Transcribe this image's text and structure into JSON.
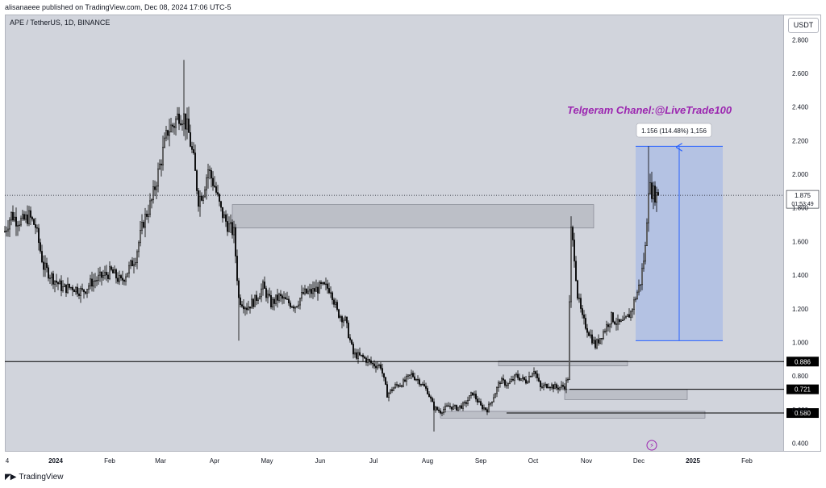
{
  "publisher": "alisanaeee published on TradingView.com, Dec 08, 2024 17:06 UTC-5",
  "symbol_info": "APE / TetherUS, 1D, BINANCE",
  "currency_button": "USDT",
  "footer": {
    "logo_icon": "tradingview-logo-icon",
    "brand": "TradingView"
  },
  "telegram_annotation": "Telgeram Chanel:@LiveTrade100",
  "measure_label": "1.156 (114.48%) 1,156",
  "last_price": {
    "value": "1.875",
    "countdown": "01:53:49"
  },
  "colors": {
    "background": "#d1d4dc",
    "candle": "#000000",
    "measure_fill": "#a9bce6",
    "measure_line": "#2962ff",
    "annotation": "#9c27b0",
    "zone_fill": "#9598a1"
  },
  "chart_data": {
    "type": "candlestick",
    "title": "APE / TetherUS, 1D, BINANCE",
    "y_unit": "USDT",
    "ylim": [
      0.35,
      2.95
    ],
    "y_ticks": [
      "2.800",
      "2.600",
      "2.400",
      "2.200",
      "2.000",
      "1.800",
      "1.600",
      "1.400",
      "1.200",
      "1.000",
      "0.800",
      "0.600",
      "0.400"
    ],
    "x_ticks": [
      "4",
      "2024",
      "Feb",
      "Mar",
      "Apr",
      "May",
      "Jun",
      "Jul",
      "Aug",
      "Sep",
      "Oct",
      "Nov",
      "Dec",
      "2025",
      "Feb"
    ],
    "price_path": [
      [
        0,
        1.66
      ],
      [
        8,
        1.76
      ],
      [
        14,
        1.73
      ],
      [
        22,
        1.72
      ],
      [
        30,
        1.75
      ],
      [
        38,
        1.69
      ],
      [
        48,
        1.45
      ],
      [
        60,
        1.38
      ],
      [
        72,
        1.32
      ],
      [
        84,
        1.33
      ],
      [
        96,
        1.3
      ],
      [
        108,
        1.36
      ],
      [
        120,
        1.39
      ],
      [
        132,
        1.42
      ],
      [
        144,
        1.36
      ],
      [
        154,
        1.44
      ],
      [
        162,
        1.51
      ],
      [
        172,
        1.72
      ],
      [
        182,
        1.84
      ],
      [
        192,
        2.05
      ],
      [
        202,
        2.26
      ],
      [
        210,
        2.3
      ],
      [
        216,
        2.36
      ],
      [
        222,
        2.34
      ],
      [
        228,
        2.24
      ],
      [
        234,
        2.08
      ],
      [
        240,
        1.85
      ],
      [
        246,
        1.9
      ],
      [
        252,
        2.03
      ],
      [
        260,
        1.93
      ],
      [
        268,
        1.78
      ],
      [
        276,
        1.7
      ],
      [
        284,
        1.65
      ],
      [
        290,
        1.26
      ],
      [
        300,
        1.21
      ],
      [
        310,
        1.25
      ],
      [
        320,
        1.33
      ],
      [
        330,
        1.23
      ],
      [
        340,
        1.27
      ],
      [
        350,
        1.24
      ],
      [
        360,
        1.22
      ],
      [
        370,
        1.29
      ],
      [
        380,
        1.3
      ],
      [
        392,
        1.33
      ],
      [
        404,
        1.32
      ],
      [
        412,
        1.18
      ],
      [
        422,
        1.13
      ],
      [
        432,
        0.93
      ],
      [
        444,
        0.91
      ],
      [
        456,
        0.87
      ],
      [
        466,
        0.86
      ],
      [
        474,
        0.69
      ],
      [
        484,
        0.74
      ],
      [
        494,
        0.76
      ],
      [
        504,
        0.81
      ],
      [
        514,
        0.77
      ],
      [
        524,
        0.71
      ],
      [
        532,
        0.61
      ],
      [
        540,
        0.59
      ],
      [
        550,
        0.62
      ],
      [
        560,
        0.61
      ],
      [
        570,
        0.63
      ],
      [
        580,
        0.7
      ],
      [
        590,
        0.62
      ],
      [
        598,
        0.6
      ],
      [
        606,
        0.68
      ],
      [
        614,
        0.77
      ],
      [
        624,
        0.75
      ],
      [
        634,
        0.8
      ],
      [
        646,
        0.77
      ],
      [
        656,
        0.84
      ],
      [
        664,
        0.73
      ],
      [
        674,
        0.75
      ],
      [
        684,
        0.73
      ],
      [
        694,
        0.74
      ],
      [
        698,
        0.79
      ],
      [
        702,
        1.66
      ],
      [
        706,
        1.52
      ],
      [
        710,
        1.28
      ],
      [
        716,
        1.14
      ],
      [
        724,
        1.06
      ],
      [
        732,
        0.98
      ],
      [
        738,
        1.03
      ],
      [
        744,
        1.08
      ],
      [
        752,
        1.15
      ],
      [
        760,
        1.11
      ],
      [
        768,
        1.12
      ],
      [
        776,
        1.18
      ],
      [
        782,
        1.27
      ],
      [
        788,
        1.36
      ],
      [
        794,
        1.56
      ],
      [
        798,
        1.93
      ],
      [
        802,
        1.9
      ],
      [
        806,
        1.88
      ],
      [
        810,
        1.875
      ]
    ],
    "zones": [
      {
        "from": 282,
        "to": 730,
        "high": 1.82,
        "low": 1.68
      },
      {
        "from": 612,
        "to": 772,
        "high": 0.89,
        "low": 0.86
      },
      {
        "from": 694,
        "to": 846,
        "high": 0.72,
        "low": 0.66
      },
      {
        "from": 540,
        "to": 868,
        "high": 0.59,
        "low": 0.55
      }
    ],
    "levels": [
      {
        "value": 0.886,
        "label": "0.886",
        "from": 0
      },
      {
        "value": 0.721,
        "label": "0.721",
        "from": 700
      },
      {
        "value": 0.58,
        "label": "0.580",
        "from": 622
      }
    ],
    "current_price": 1.875,
    "measure": {
      "from": 782,
      "to": 890,
      "low": 1.01,
      "high": 2.166,
      "change": 1.156,
      "percent": 114.48
    }
  }
}
